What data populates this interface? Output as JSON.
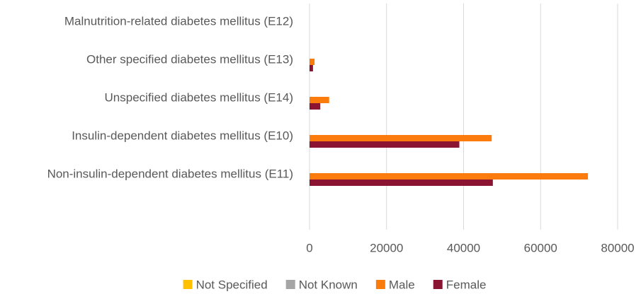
{
  "chart_data": {
    "type": "barh",
    "categories": [
      "Malnutrition-related diabetes mellitus (E12)",
      "Other specified diabetes mellitus (E13)",
      "Unspecified diabetes mellitus (E14)",
      "Insulin-dependent diabetes mellitus (E10)",
      "Non-insulin-dependent diabetes mellitus (E11)"
    ],
    "series": [
      {
        "name": "Not Specified",
        "color": "#ffc000",
        "values": [
          0,
          0,
          0,
          0,
          0
        ]
      },
      {
        "name": "Not Known",
        "color": "#a5a5a5",
        "values": [
          0,
          0,
          0,
          0,
          0
        ]
      },
      {
        "name": "Male",
        "color": "#fb7b0c",
        "values": [
          0,
          1300,
          5100,
          47300,
          72300
        ]
      },
      {
        "name": "Female",
        "color": "#8b1432",
        "values": [
          0,
          900,
          2800,
          38900,
          47600
        ]
      }
    ],
    "xlim": [
      0,
      80000
    ],
    "xticks": [
      0,
      20000,
      40000,
      60000,
      80000
    ],
    "grid": true,
    "legend": "bottom"
  }
}
